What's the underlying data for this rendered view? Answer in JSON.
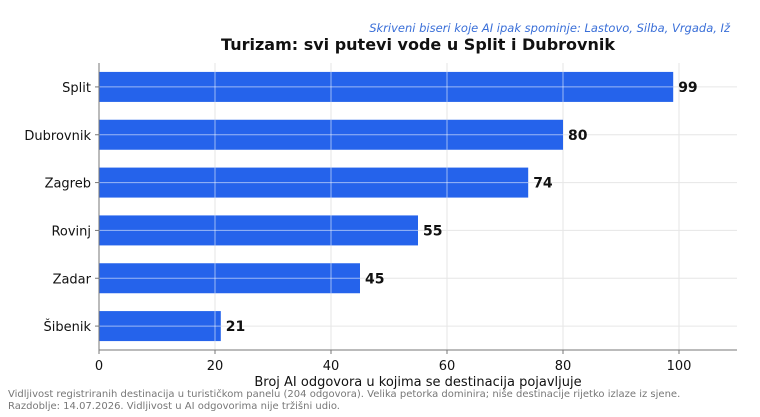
{
  "chart_data": {
    "type": "bar",
    "orientation": "horizontal",
    "title": "Turizam: svi putevi vode u Split i Dubrovnik",
    "subtitle": "Skriveni biseri koje AI ipak spominje: Lastovo, Silba, Vrgada, Iž",
    "xlabel": "Broj AI odgovora u kojima se destinacija pojavljuje",
    "ylabel": "",
    "categories": [
      "Split",
      "Dubrovnik",
      "Zagreb",
      "Rovinj",
      "Zadar",
      "Šibenik"
    ],
    "values": [
      99,
      80,
      74,
      55,
      45,
      21
    ],
    "xlim": [
      0,
      110
    ],
    "xticks": [
      0,
      20,
      40,
      60,
      80,
      100
    ],
    "grid": true,
    "legend": "none",
    "bar_color": "#2563eb",
    "subtitle_color": "#3a6fd8"
  },
  "footnotes": [
    "Vidljivost registriranih destinacija u turističkom panelu (204 odgovora). Velika petorka dominira; niše destinacije rijetko izlaze iz sjene.",
    "Razdoblje: 14.07.2026. Vidljivost u AI odgovorima nije tržišni udio."
  ]
}
